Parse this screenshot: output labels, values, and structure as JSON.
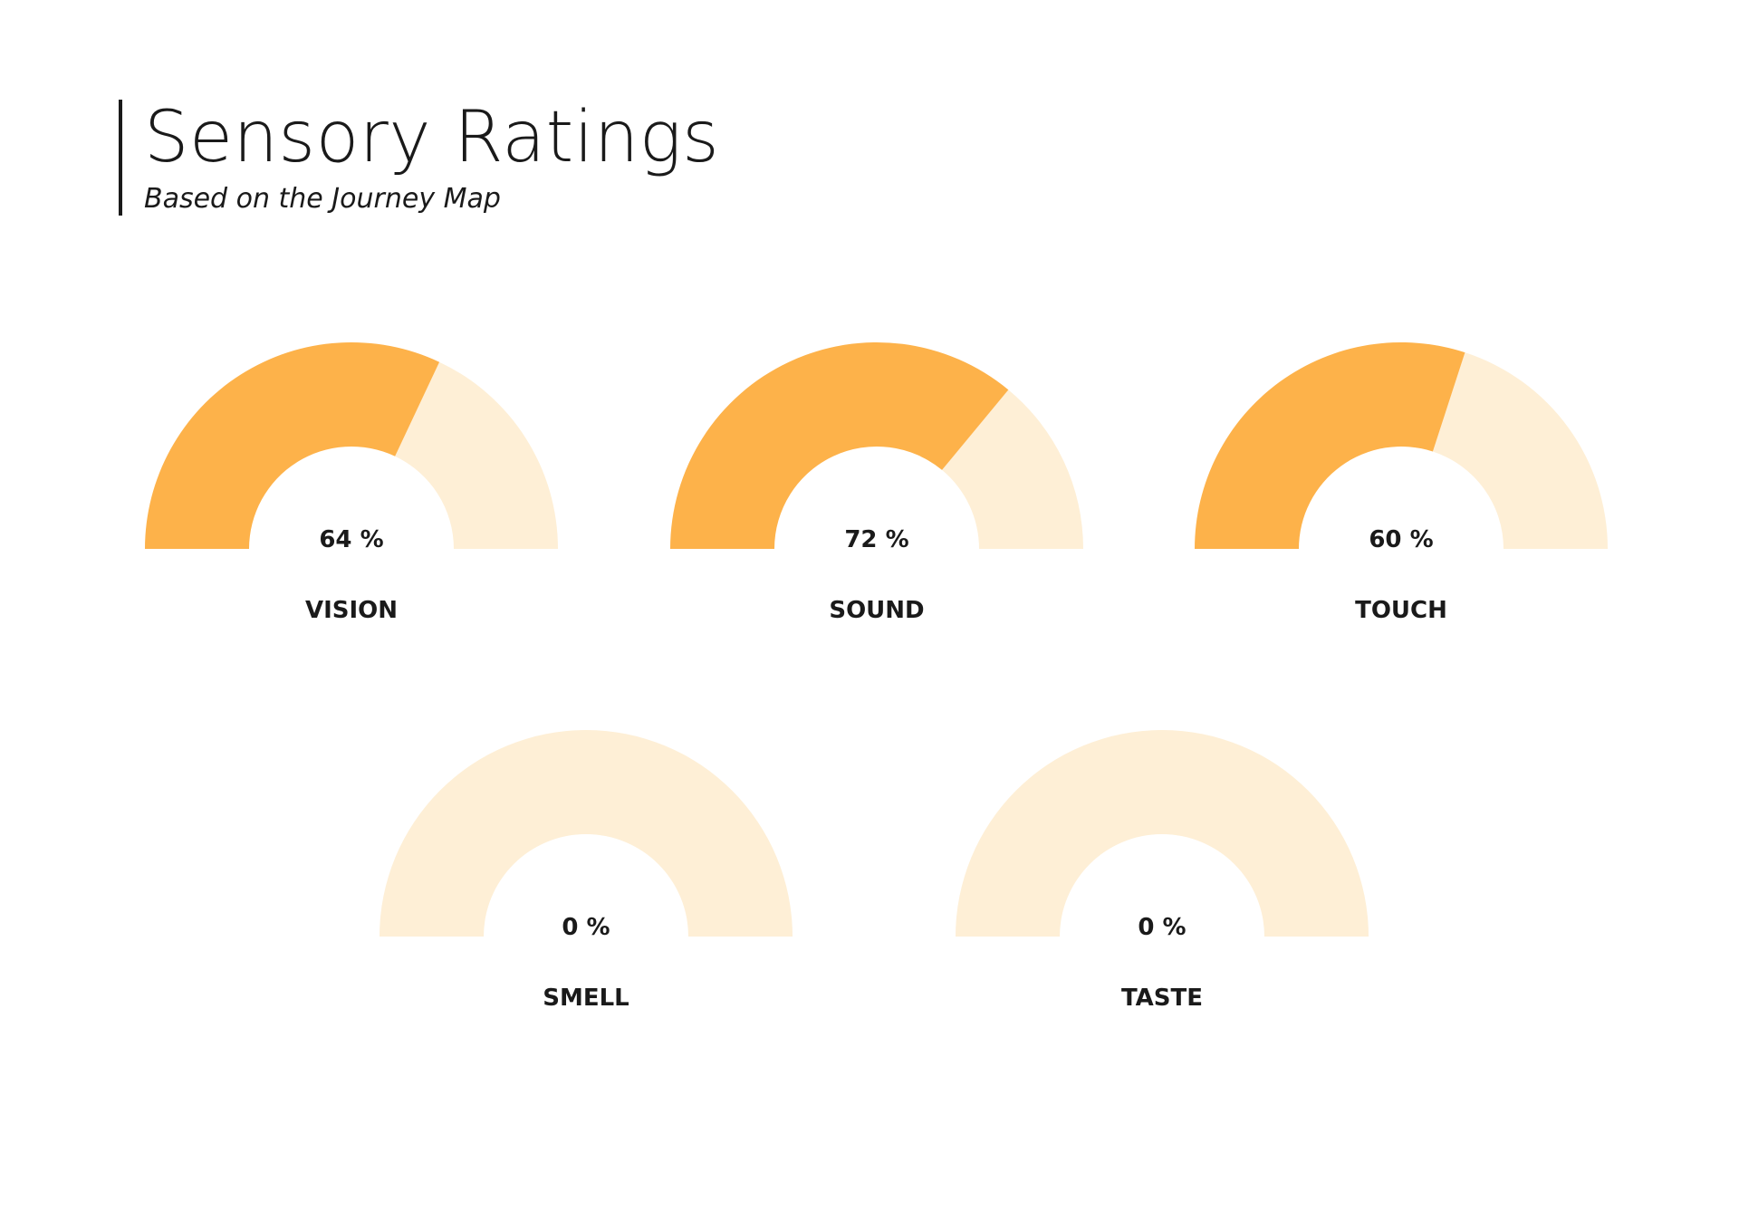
{
  "header": {
    "title": "Sensory Ratings",
    "subtitle": "Based on the Journey Map"
  },
  "colors": {
    "filled": "#FDB24A",
    "track": "#FEEFD6",
    "text": "#1A1A1A"
  },
  "chart_data": {
    "type": "gauge",
    "title": "Sensory Ratings",
    "subtitle": "Based on the Journey Map",
    "range": [
      0,
      100
    ],
    "unit": "%",
    "gauges": [
      {
        "label": "VISION",
        "value": 64,
        "value_label": "64 %"
      },
      {
        "label": "SOUND",
        "value": 72,
        "value_label": "72 %"
      },
      {
        "label": "TOUCH",
        "value": 60,
        "value_label": "60 %"
      },
      {
        "label": "SMELL",
        "value": 0,
        "value_label": "0 %"
      },
      {
        "label": "TASTE",
        "value": 0,
        "value_label": "0 %"
      }
    ]
  }
}
